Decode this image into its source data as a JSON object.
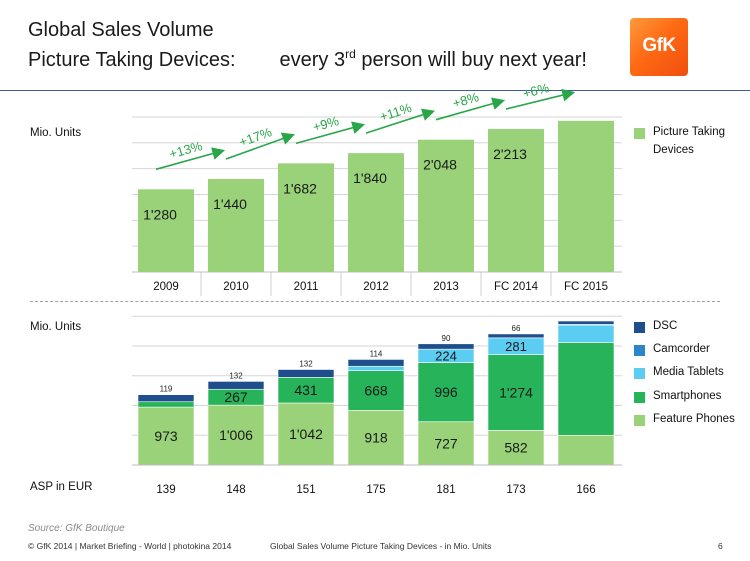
{
  "header": {
    "title_line1": "Global Sales Volume",
    "title_line2_left": "Picture Taking Devices:",
    "title_line2_right_pre": "every 3",
    "title_line2_sup": "rd",
    "title_line2_right_post": " person will buy next year!",
    "logo_text": "GfK"
  },
  "colors": {
    "picture_taking": "#99d279",
    "feature_phones": "#99d279",
    "smartphones": "#26b35a",
    "media_tablets": "#5ccdf2",
    "camcorder": "#2a86c8",
    "dsc": "#1f4e8c",
    "arrow": "#2aa64a",
    "title_rule": "#3b5b9a"
  },
  "chart_data": [
    {
      "type": "bar",
      "ylabel": "Mio. Units",
      "categories": [
        "2009",
        "2010",
        "2011",
        "2012",
        "2013",
        "FC 2014",
        "FC 2015"
      ],
      "series": [
        {
          "name": "Picture Taking Devices",
          "values": [
            1280,
            1440,
            1682,
            1840,
            2048,
            2213,
            2340
          ],
          "labels": [
            "1'280",
            "1'440",
            "1'682",
            "1'840",
            "2'048",
            "2'213",
            ""
          ]
        }
      ],
      "growth_labels": [
        "+13%",
        "+17%",
        "+9%",
        "+11%",
        "+8%",
        "+6%"
      ],
      "legend": {
        "placement": "right",
        "line1": "Picture Taking",
        "line2": "Devices"
      },
      "grid": true,
      "ylim": [
        0,
        2400
      ]
    },
    {
      "type": "bar",
      "stacked": true,
      "ylabel": "Mio. Units",
      "categories": [
        "2009",
        "2010",
        "2011",
        "2012",
        "2013",
        "FC 2014",
        "FC 2015"
      ],
      "series": [
        {
          "name": "Feature Phones",
          "values": [
            973,
            1006,
            1042,
            918,
            727,
            582,
            500
          ],
          "labels": [
            "973",
            "1'006",
            "1'042",
            "918",
            "727",
            "582",
            ""
          ]
        },
        {
          "name": "Smartphones",
          "values": [
            90,
            267,
            431,
            668,
            996,
            1274,
            1560
          ],
          "labels": [
            "",
            "267",
            "431",
            "668",
            "996",
            "1'274",
            ""
          ]
        },
        {
          "name": "Media Tablets",
          "values": [
            0,
            0,
            0,
            74,
            224,
            281,
            290
          ],
          "labels": [
            "",
            "",
            "",
            "",
            "224",
            "281",
            ""
          ]
        },
        {
          "name": "Camcorder",
          "values": [
            0,
            0,
            0,
            0,
            0,
            0,
            15
          ],
          "labels": [
            "",
            "",
            "",
            "",
            "",
            "",
            ""
          ]
        },
        {
          "name": "DSC",
          "values": [
            119,
            132,
            132,
            114,
            90,
            66,
            55
          ],
          "labels": [
            "119",
            "132",
            "132",
            "114",
            "90",
            "66",
            ""
          ]
        }
      ],
      "legend": {
        "placement": "right",
        "order": [
          "DSC",
          "Camcorder",
          "Media Tablets",
          "Smartphones",
          "Feature Phones"
        ]
      },
      "grid": true,
      "ylim": [
        0,
        2500
      ],
      "asp": {
        "label": "ASP in EUR",
        "values": [
          "139",
          "148",
          "151",
          "175",
          "181",
          "173",
          "166"
        ]
      }
    }
  ],
  "footer": {
    "source": "Source: GfK Boutique",
    "left": "© GfK 2014 | Market Briefing - World | photokina 2014",
    "center": "Global Sales Volume Picture Taking Devices - in Mio. Units",
    "page": "6"
  }
}
